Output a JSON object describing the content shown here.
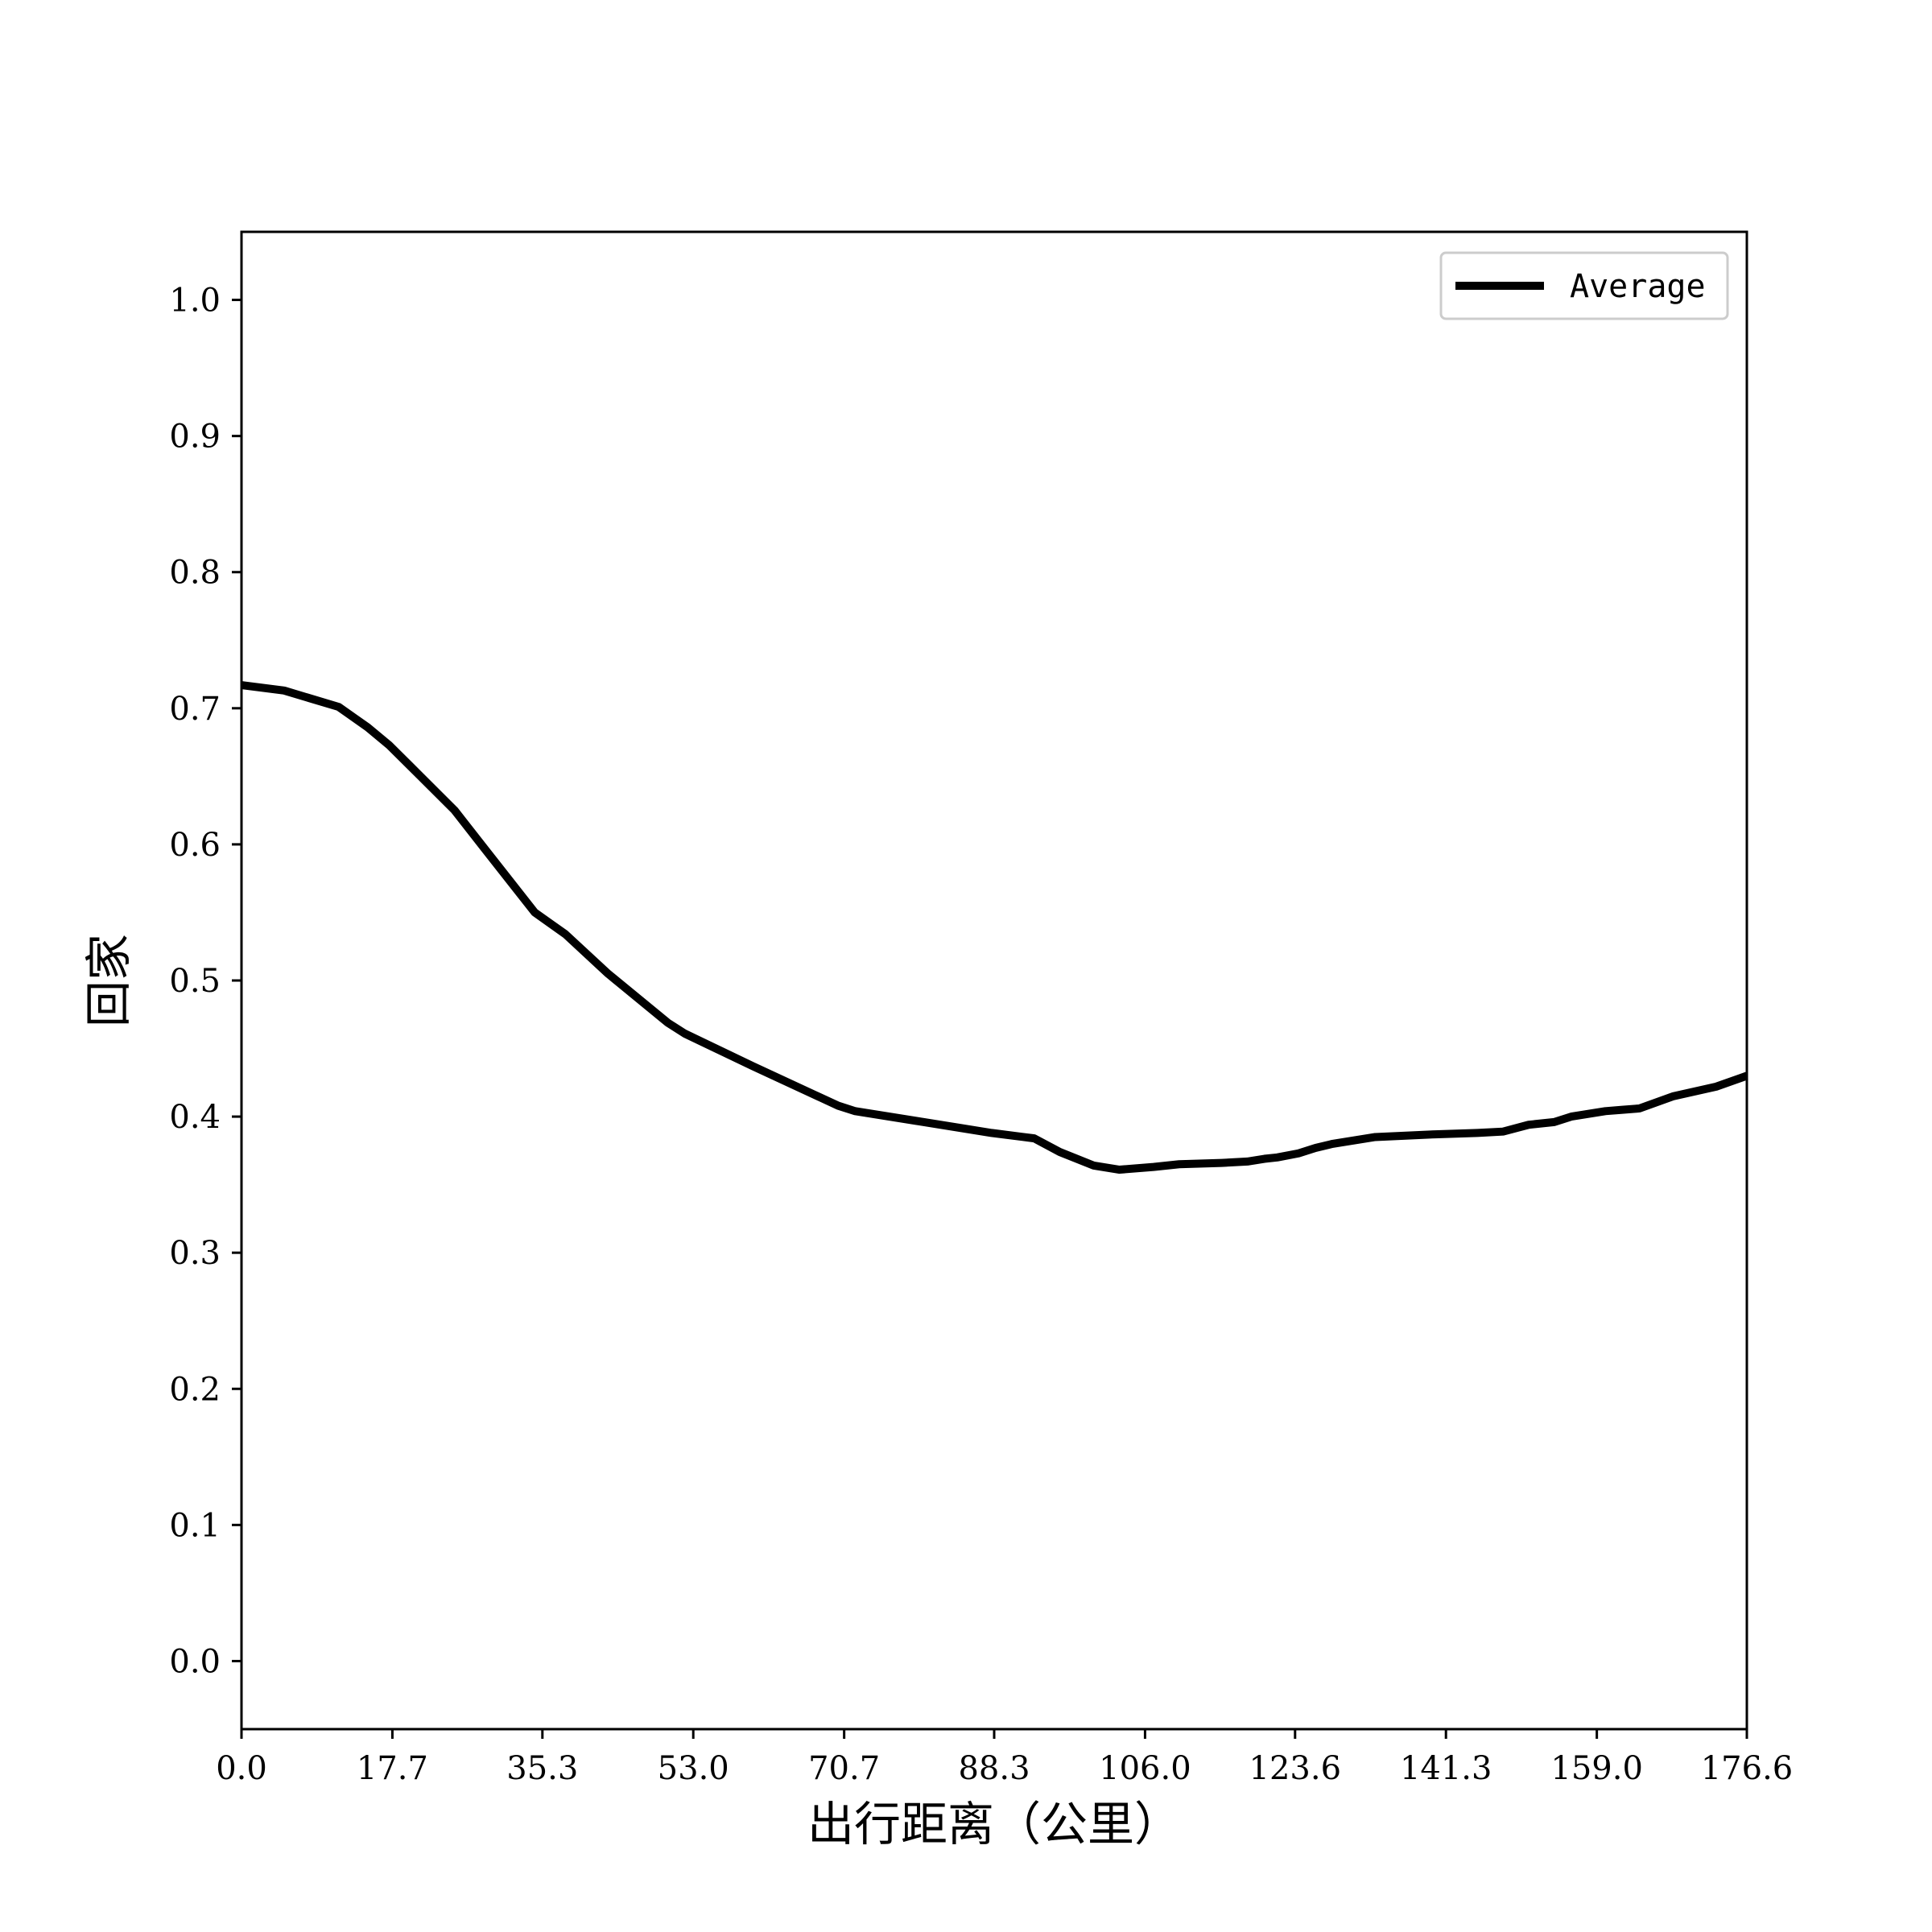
{
  "chart_data": {
    "type": "line",
    "title": "",
    "xlabel": "出行距离（公里）",
    "ylabel": "回家",
    "xlim": [
      0.0,
      176.6
    ],
    "ylim": [
      -0.05,
      1.05
    ],
    "x_ticks": [
      "0.0",
      "17.7",
      "35.3",
      "53.0",
      "70.7",
      "88.3",
      "106.0",
      "123.6",
      "141.3",
      "159.0",
      "176.6"
    ],
    "x_tick_values": [
      0.0,
      17.7,
      35.3,
      53.0,
      70.7,
      88.3,
      106.0,
      123.6,
      141.3,
      159.0,
      176.6
    ],
    "y_ticks": [
      "0.0",
      "0.1",
      "0.2",
      "0.3",
      "0.4",
      "0.5",
      "0.6",
      "0.7",
      "0.8",
      "0.9",
      "1.0"
    ],
    "y_tick_values": [
      0.0,
      0.1,
      0.2,
      0.3,
      0.4,
      0.5,
      0.6,
      0.7,
      0.8,
      0.9,
      1.0
    ],
    "grid": false,
    "legend_position": "top-right",
    "series": [
      {
        "name": "Average",
        "color": "#000000",
        "x": [
          0.0,
          5.0,
          11.4,
          14.8,
          17.3,
          21.0,
          25.0,
          28.5,
          34.4,
          38.0,
          43.0,
          50.0,
          52.0,
          60.0,
          70.0,
          72.0,
          80.0,
          88.0,
          93.0,
          96.0,
          100.0,
          103.0,
          107.0,
          110.0,
          115.0,
          118.0,
          120.0,
          121.5,
          124.0,
          126.0,
          128.0,
          133.0,
          140.0,
          145.0,
          148.0,
          151.0,
          154.0,
          156.0,
          160.0,
          162.0,
          164.0,
          168.0,
          173.0,
          176.6
        ],
        "y": [
          0.717,
          0.713,
          0.701,
          0.686,
          0.673,
          0.65,
          0.625,
          0.597,
          0.55,
          0.534,
          0.505,
          0.469,
          0.461,
          0.437,
          0.408,
          0.404,
          0.396,
          0.388,
          0.384,
          0.374,
          0.364,
          0.361,
          0.363,
          0.365,
          0.366,
          0.367,
          0.369,
          0.37,
          0.373,
          0.377,
          0.38,
          0.385,
          0.387,
          0.388,
          0.389,
          0.394,
          0.396,
          0.4,
          0.404,
          0.405,
          0.406,
          0.415,
          0.422,
          0.43
        ]
      }
    ]
  }
}
